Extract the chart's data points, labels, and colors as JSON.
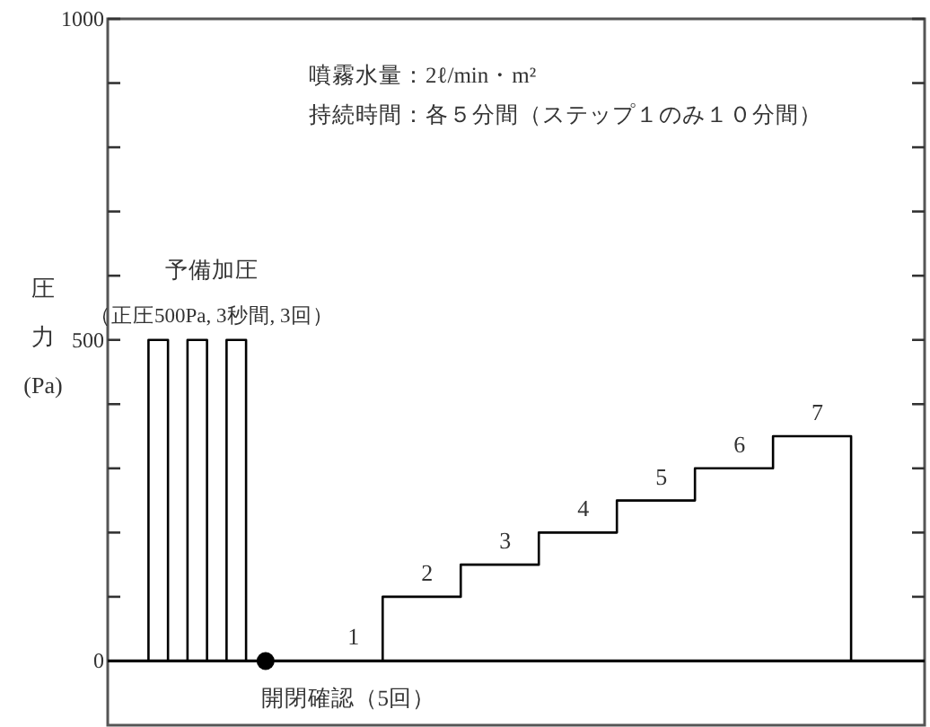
{
  "chart_data": {
    "type": "step",
    "ylabel": "圧力(Pa)",
    "categories": [
      null,
      null,
      null,
      null,
      null,
      null,
      null,
      null,
      null,
      null,
      null,
      null,
      null,
      null,
      null,
      null,
      null,
      null,
      null,
      null,
      null,
      null,
      null,
      null,
      null,
      null,
      null,
      null,
      null,
      null,
      null,
      null,
      null,
      null,
      null,
      null,
      null,
      null
    ],
    "series": [
      {
        "color": "#000000",
        "values": [
          0,
          500,
          0,
          500,
          0,
          500,
          0,
          0,
          0,
          0,
          0,
          0,
          0,
          100,
          100,
          100,
          100,
          150,
          150,
          150,
          150,
          200,
          200,
          200,
          200,
          250,
          250,
          250,
          250,
          300,
          300,
          300,
          300,
          350,
          350,
          350,
          350,
          0
        ]
      },
      {
        "type": "scatter",
        "color": "#000000",
        "marker": "circle",
        "values": [
          null,
          null,
          null,
          null,
          null,
          null,
          null,
          0,
          null,
          null,
          null,
          null,
          null,
          null,
          null,
          null,
          null,
          null,
          null,
          null,
          null,
          null,
          null,
          null,
          null,
          null,
          null,
          null,
          null,
          null,
          null,
          null,
          null,
          null,
          null,
          null,
          null,
          null
        ]
      }
    ],
    "ylim": [
      -100,
      1000
    ],
    "yticks": [
      0,
      {
        "value": 100,
        "label": null
      },
      {
        "value": 200,
        "label": null
      },
      {
        "value": 300,
        "label": null
      },
      {
        "value": 400,
        "label": null
      },
      500,
      {
        "value": 600,
        "label": null
      },
      {
        "value": 700,
        "label": null
      },
      {
        "value": 800,
        "label": null
      },
      {
        "value": 900,
        "label": null
      },
      1000
    ],
    "tick_labels": "y",
    "ref_lines": [
      {
        "axis": "y",
        "value": 0,
        "color": "#000000"
      }
    ],
    "annotations": [
      "噴霧水量：2ℓ/min・m²",
      "持続時間：各５分間（ステップ１のみ１０分間）",
      "予備加圧",
      "（正圧500Pa, 3秒間, 3回）",
      "開閉確認（5回）",
      {
        "text": "1",
        "y": 0
      },
      {
        "text": "2",
        "y": 100
      },
      {
        "text": "3",
        "y": 150
      },
      {
        "text": "4",
        "y": 200
      },
      {
        "text": "5",
        "y": 250
      },
      {
        "text": "6",
        "y": 300
      },
      {
        "text": "7",
        "y": 350
      }
    ]
  }
}
